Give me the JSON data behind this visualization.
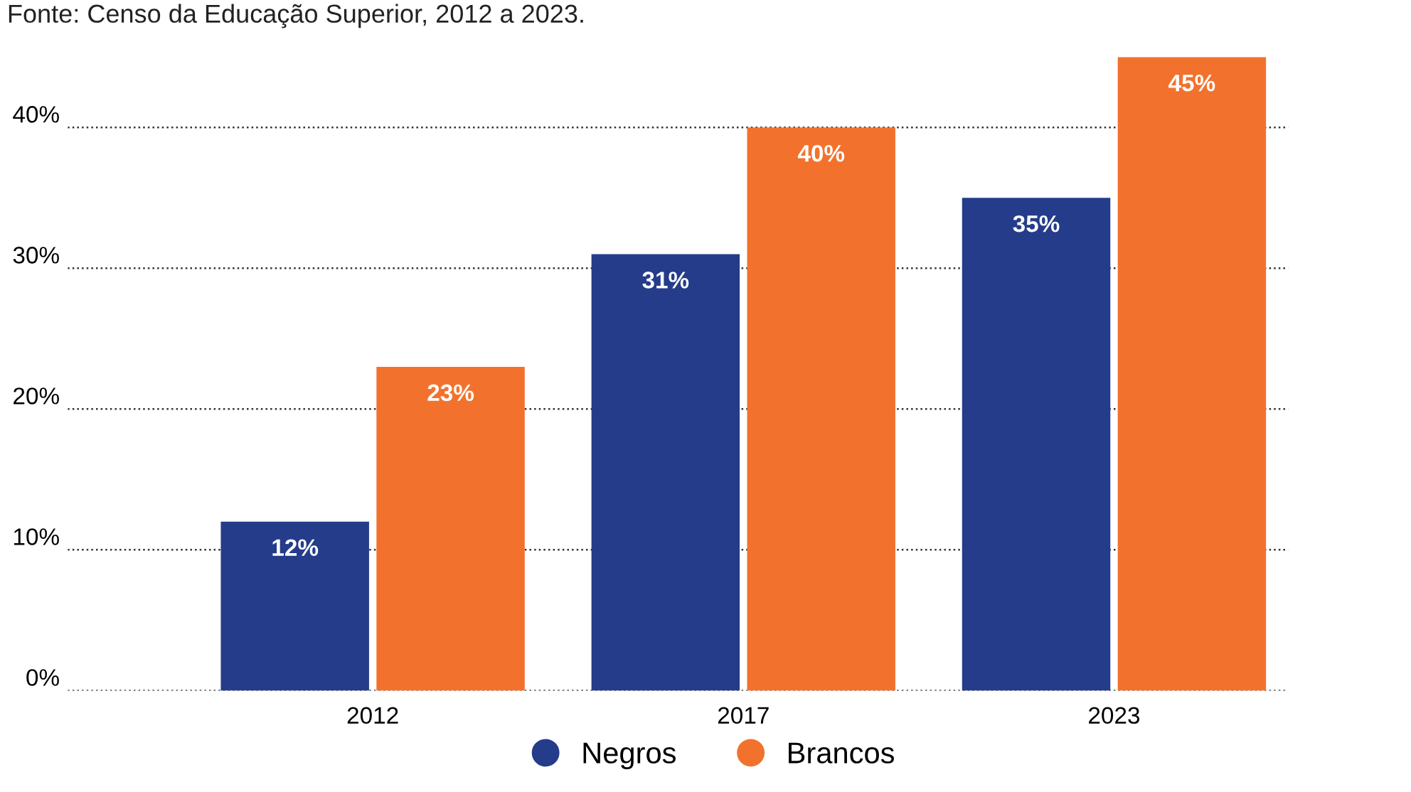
{
  "chart_data": {
    "type": "bar",
    "categories": [
      "2012",
      "2017",
      "2023"
    ],
    "series": [
      {
        "name": "Negros",
        "color": "#253c8a",
        "values": [
          12,
          31,
          35
        ],
        "value_labels": [
          "12%",
          "31%",
          "35%"
        ]
      },
      {
        "name": "Brancos",
        "color": "#f2722d",
        "values": [
          23,
          40,
          45
        ],
        "value_labels": [
          "23%",
          "40%",
          "45%"
        ]
      }
    ],
    "ylim": [
      0,
      45
    ],
    "yticks": [
      {
        "value": 0,
        "label": "0%"
      },
      {
        "value": 10,
        "label": "10%"
      },
      {
        "value": 20,
        "label": "20%"
      },
      {
        "value": 30,
        "label": "30%"
      },
      {
        "value": 40,
        "label": "40%"
      }
    ],
    "grid": "y",
    "line_style": "dotted",
    "legend": "bottom",
    "marker": "circle",
    "annotations": [
      "Fonte: Censo da Educação Superior, 2012 a 2023."
    ]
  }
}
